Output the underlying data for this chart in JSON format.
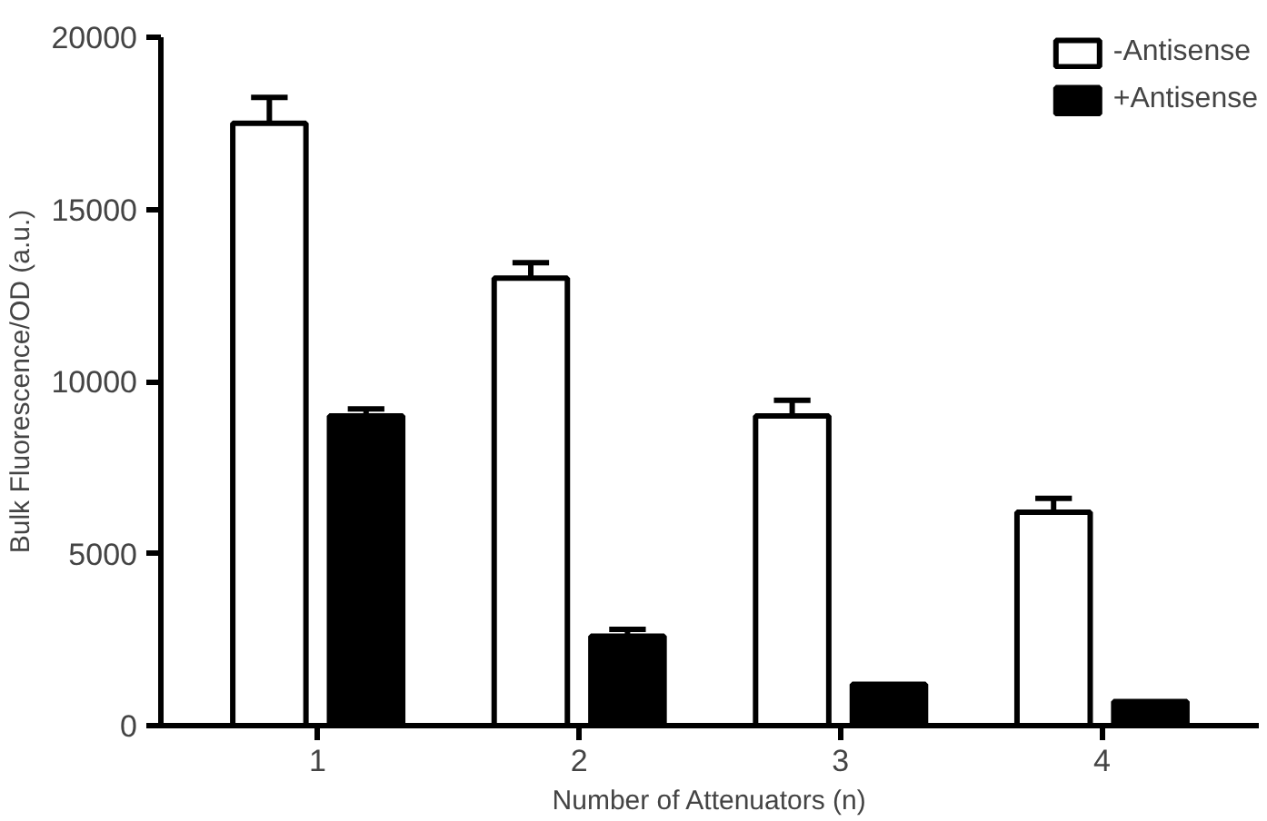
{
  "chart_data": {
    "type": "bar",
    "xlabel": "Number of Attenuators (n)",
    "ylabel": "Bulk Fluorescence/OD (a.u.)",
    "categories": [
      "1",
      "2",
      "3",
      "4"
    ],
    "series": [
      {
        "name": "-Antisense",
        "color": "#ffffff",
        "values": [
          17500,
          13000,
          9000,
          6200
        ],
        "errors": [
          [
            17500,
            18250
          ],
          [
            13000,
            13450
          ],
          [
            9000,
            9450
          ],
          [
            6200,
            6600
          ]
        ]
      },
      {
        "name": "+Antisense",
        "color": "#000000",
        "values": [
          9000,
          2600,
          1200,
          700
        ],
        "errors": [
          [
            9000,
            9200
          ],
          [
            2600,
            2800
          ],
          null,
          null
        ]
      }
    ],
    "ylim": [
      0,
      20000
    ],
    "yticks": [
      0,
      5000,
      10000,
      15000,
      20000
    ],
    "grid": false,
    "legend": "top right"
  }
}
